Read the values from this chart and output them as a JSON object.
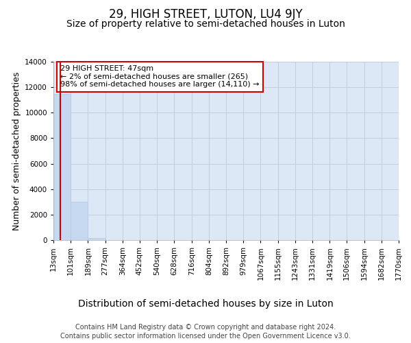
{
  "title": "29, HIGH STREET, LUTON, LU4 9JY",
  "subtitle": "Size of property relative to semi-detached houses in Luton",
  "xlabel": "Distribution of semi-detached houses by size in Luton",
  "ylabel": "Number of semi-detached properties",
  "footer_line1": "Contains HM Land Registry data © Crown copyright and database right 2024.",
  "footer_line2": "Contains public sector information licensed under the Open Government Licence v3.0.",
  "annotation_line1": "29 HIGH STREET: 47sqm",
  "annotation_line2": "← 2% of semi-detached houses are smaller (265)",
  "annotation_line3": "98% of semi-detached houses are larger (14,110) →",
  "bar_edges": [
    13,
    101,
    189,
    277,
    364,
    452,
    540,
    628,
    716,
    804,
    892,
    979,
    1067,
    1155,
    1243,
    1331,
    1419,
    1506,
    1594,
    1682,
    1770
  ],
  "bar_heights": [
    11450,
    3020,
    180,
    0,
    0,
    0,
    0,
    0,
    0,
    0,
    0,
    0,
    0,
    0,
    0,
    0,
    0,
    0,
    0,
    0
  ],
  "bar_color": "#c5d8ef",
  "bar_edge_color": "#b0c8e8",
  "property_size": 47,
  "red_line_color": "#cc0000",
  "annotation_box_color": "#cc0000",
  "ylim": [
    0,
    14000
  ],
  "yticks": [
    0,
    2000,
    4000,
    6000,
    8000,
    10000,
    12000,
    14000
  ],
  "xtick_labels": [
    "13sqm",
    "101sqm",
    "189sqm",
    "277sqm",
    "364sqm",
    "452sqm",
    "540sqm",
    "628sqm",
    "716sqm",
    "804sqm",
    "892sqm",
    "979sqm",
    "1067sqm",
    "1155sqm",
    "1243sqm",
    "1331sqm",
    "1419sqm",
    "1506sqm",
    "1594sqm",
    "1682sqm",
    "1770sqm"
  ],
  "grid_color": "#c0cfe0",
  "bg_color": "#dce8f5",
  "title_fontsize": 12,
  "subtitle_fontsize": 10,
  "axis_label_fontsize": 9,
  "tick_fontsize": 7.5,
  "footer_fontsize": 7
}
